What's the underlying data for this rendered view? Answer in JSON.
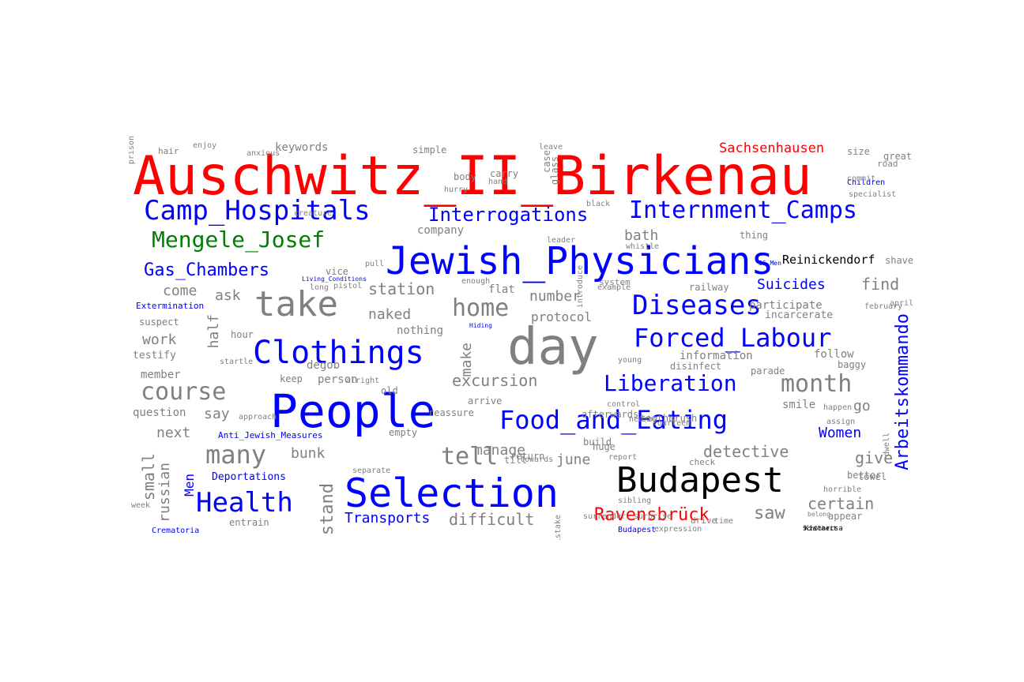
{
  "colors": {
    "place_red": "#ff0000",
    "topic_blue": "#0000ff",
    "person_green": "#008000",
    "place_black": "#000000",
    "word_gray": "#808080"
  },
  "words": [
    {
      "text": "Auschwitz_II_Birkenau",
      "color": "place_red"
    },
    {
      "text": "Jewish_Physicians",
      "color": "topic_blue"
    },
    {
      "text": "People",
      "color": "topic_blue"
    },
    {
      "text": "Selection",
      "color": "topic_blue"
    },
    {
      "text": "day",
      "color": "word_gray"
    },
    {
      "text": "Budapest",
      "color": "place_black"
    },
    {
      "text": "take",
      "color": "word_gray"
    },
    {
      "text": "Clothings",
      "color": "topic_blue"
    },
    {
      "text": "Camp_Hospitals",
      "color": "topic_blue"
    },
    {
      "text": "Internment_Camps",
      "color": "topic_blue"
    },
    {
      "text": "Interrogations",
      "color": "topic_blue"
    },
    {
      "text": "Mengele_Josef",
      "color": "person_green"
    },
    {
      "text": "Diseases",
      "color": "topic_blue"
    },
    {
      "text": "Forced_Labour",
      "color": "topic_blue"
    },
    {
      "text": "Food_and_Eating",
      "color": "topic_blue"
    },
    {
      "text": "Health",
      "color": "topic_blue"
    },
    {
      "text": "Liberation",
      "color": "topic_blue"
    },
    {
      "text": "month",
      "color": "word_gray"
    },
    {
      "text": "course",
      "color": "word_gray"
    },
    {
      "text": "many",
      "color": "word_gray"
    },
    {
      "text": "tell",
      "color": "word_gray"
    },
    {
      "text": "home",
      "color": "word_gray"
    },
    {
      "text": "Gas_Chambers",
      "color": "topic_blue"
    },
    {
      "text": "Ravensbrück",
      "color": "place_red"
    },
    {
      "text": "Arbeitskommando",
      "color": "topic_blue",
      "vertical": true
    },
    {
      "text": "Sachsenhausen",
      "color": "place_red"
    },
    {
      "text": "Reinickendorf",
      "color": "place_black"
    },
    {
      "text": "Suicides",
      "color": "topic_blue"
    },
    {
      "text": "find",
      "color": "word_gray"
    },
    {
      "text": "station",
      "color": "word_gray"
    },
    {
      "text": "number",
      "color": "word_gray"
    },
    {
      "text": "Transports",
      "color": "topic_blue"
    },
    {
      "text": "difficult",
      "color": "word_gray"
    },
    {
      "text": "saw",
      "color": "word_gray"
    },
    {
      "text": "certain",
      "color": "word_gray"
    },
    {
      "text": "Women",
      "color": "topic_blue"
    },
    {
      "text": "give",
      "color": "word_gray"
    },
    {
      "text": "go",
      "color": "word_gray"
    },
    {
      "text": "detective",
      "color": "word_gray"
    },
    {
      "text": "excursion",
      "color": "word_gray"
    },
    {
      "text": "manage",
      "color": "word_gray"
    },
    {
      "text": "bunk",
      "color": "word_gray"
    },
    {
      "text": "june",
      "color": "word_gray"
    },
    {
      "text": "naked",
      "color": "word_gray"
    },
    {
      "text": "make",
      "color": "word_gray",
      "vertical": true
    },
    {
      "text": "half",
      "color": "word_gray",
      "vertical": true
    },
    {
      "text": "work",
      "color": "word_gray"
    },
    {
      "text": "ask",
      "color": "word_gray"
    },
    {
      "text": "come",
      "color": "word_gray"
    },
    {
      "text": "next",
      "color": "word_gray"
    },
    {
      "text": "say",
      "color": "word_gray"
    },
    {
      "text": "stand",
      "color": "word_gray",
      "vertical": true
    },
    {
      "text": "small",
      "color": "word_gray",
      "vertical": true
    },
    {
      "text": "russian",
      "color": "word_gray",
      "vertical": true
    },
    {
      "text": "Men",
      "color": "topic_blue",
      "vertical": true
    },
    {
      "text": "Deportations",
      "color": "topic_blue"
    },
    {
      "text": "Anti_Jewish_Measures",
      "color": "topic_blue"
    },
    {
      "text": "Extermination",
      "color": "topic_blue"
    },
    {
      "text": "Children",
      "color": "topic_blue"
    },
    {
      "text": "protocol",
      "color": "word_gray"
    },
    {
      "text": "information",
      "color": "word_gray"
    },
    {
      "text": "participate",
      "color": "word_gray"
    },
    {
      "text": "incarcerate",
      "color": "word_gray"
    },
    {
      "text": "bath",
      "color": "word_gray"
    },
    {
      "text": "keywords",
      "color": "word_gray"
    },
    {
      "text": "simple",
      "color": "word_gray"
    },
    {
      "text": "company",
      "color": "word_gray"
    },
    {
      "text": "vice",
      "color": "word_gray"
    },
    {
      "text": "entrain",
      "color": "word_gray"
    },
    {
      "text": "question",
      "color": "word_gray"
    },
    {
      "text": "member",
      "color": "word_gray"
    },
    {
      "text": "testify",
      "color": "word_gray"
    },
    {
      "text": "suspect",
      "color": "word_gray"
    },
    {
      "text": "nothing",
      "color": "word_gray"
    },
    {
      "text": "person",
      "color": "word_gray"
    },
    {
      "text": "degob",
      "color": "word_gray"
    },
    {
      "text": "keep",
      "color": "word_gray"
    },
    {
      "text": "follow",
      "color": "word_gray"
    },
    {
      "text": "baggy",
      "color": "word_gray"
    },
    {
      "text": "disinfect",
      "color": "word_gray"
    },
    {
      "text": "smile",
      "color": "word_gray"
    },
    {
      "text": "toothbrush",
      "color": "word_gray"
    },
    {
      "text": "afterwards",
      "color": "word_gray"
    },
    {
      "text": "arrive",
      "color": "word_gray"
    },
    {
      "text": "reassure",
      "color": "word_gray"
    },
    {
      "text": "empty",
      "color": "word_gray"
    },
    {
      "text": "return",
      "color": "word_gray"
    },
    {
      "text": "build",
      "color": "word_gray"
    },
    {
      "text": "huge",
      "color": "word_gray"
    },
    {
      "text": "check",
      "color": "word_gray"
    },
    {
      "text": "towel",
      "color": "word_gray"
    },
    {
      "text": "better",
      "color": "word_gray"
    },
    {
      "text": "appear",
      "color": "word_gray"
    },
    {
      "text": "Kistarcsa",
      "color": "place_black"
    },
    {
      "text": "Schönheit",
      "color": "place_black"
    },
    {
      "text": "railway",
      "color": "word_gray"
    },
    {
      "text": "thing",
      "color": "word_gray"
    },
    {
      "text": "shave",
      "color": "word_gray"
    },
    {
      "text": "great",
      "color": "word_gray"
    },
    {
      "text": "size",
      "color": "word_gray"
    },
    {
      "text": "hair",
      "color": "word_gray"
    },
    {
      "text": "anxious",
      "color": "word_gray"
    },
    {
      "text": "body",
      "color": "word_gray"
    },
    {
      "text": "case",
      "color": "word_gray",
      "vertical": true
    },
    {
      "text": "glass",
      "color": "word_gray",
      "vertical": true
    },
    {
      "text": "hour",
      "color": "word_gray"
    },
    {
      "text": "long",
      "color": "word_gray"
    },
    {
      "text": "pull",
      "color": "word_gray"
    },
    {
      "text": "flat",
      "color": "word_gray"
    },
    {
      "text": "till",
      "color": "word_gray"
    },
    {
      "text": "old",
      "color": "word_gray"
    },
    {
      "text": "parade",
      "color": "word_gray"
    },
    {
      "text": "february",
      "color": "word_gray"
    },
    {
      "text": "april",
      "color": "word_gray"
    },
    {
      "text": "road",
      "color": "word_gray"
    },
    {
      "text": "commit",
      "color": "word_gray"
    },
    {
      "text": "specialist",
      "color": "word_gray"
    },
    {
      "text": "young",
      "color": "word_gray"
    },
    {
      "text": "nearby",
      "color": "word_gray"
    },
    {
      "text": "control",
      "color": "word_gray"
    },
    {
      "text": "happen",
      "color": "word_gray"
    },
    {
      "text": "assign",
      "color": "word_gray"
    },
    {
      "text": "horrible",
      "color": "word_gray"
    },
    {
      "text": "belong",
      "color": "word_gray"
    },
    {
      "text": "sibling",
      "color": "word_gray"
    },
    {
      "text": "surprise",
      "color": "word_gray"
    },
    {
      "text": "fourteen",
      "color": "word_gray"
    },
    {
      "text": "report",
      "color": "word_gray"
    },
    {
      "text": "towards",
      "color": "word_gray"
    },
    {
      "text": "separate",
      "color": "word_gray"
    },
    {
      "text": "startle",
      "color": "word_gray"
    },
    {
      "text": "alright",
      "color": "word_gray"
    },
    {
      "text": "approach",
      "color": "word_gray"
    },
    {
      "text": "leader",
      "color": "word_gray"
    },
    {
      "text": "whistle",
      "color": "word_gray"
    },
    {
      "text": "black",
      "color": "word_gray"
    },
    {
      "text": "system",
      "color": "word_gray"
    },
    {
      "text": "example",
      "color": "word_gray"
    },
    {
      "text": "enough",
      "color": "word_gray"
    },
    {
      "text": "carry",
      "color": "word_gray"
    },
    {
      "text": "hand",
      "color": "word_gray"
    },
    {
      "text": "hurry",
      "color": "word_gray"
    },
    {
      "text": "leave",
      "color": "word_gray"
    },
    {
      "text": "enjoy",
      "color": "word_gray"
    },
    {
      "text": "creature",
      "color": "word_gray"
    },
    {
      "text": "expression",
      "color": "word_gray"
    },
    {
      "text": "Crematoria",
      "color": "topic_blue"
    },
    {
      "text": "Living_Conditions",
      "color": "topic_blue"
    },
    {
      "text": "Hiding",
      "color": "topic_blue"
    },
    {
      "text": "SS_Men",
      "color": "topic_blue"
    },
    {
      "text": "Budapest",
      "color": "topic_blue"
    },
    {
      "text": "surrender",
      "color": "word_gray"
    },
    {
      "text": "drive",
      "color": "word_gray"
    },
    {
      "text": "time",
      "color": "word_gray"
    },
    {
      "text": "pistol",
      "color": "word_gray"
    },
    {
      "text": "week",
      "color": "word_gray"
    },
    {
      "text": "introduce",
      "color": "word_gray",
      "vertical": true
    },
    {
      "text": "mistake",
      "color": "word_gray",
      "vertical": true
    },
    {
      "text": "dwell",
      "color": "word_gray",
      "vertical": true
    },
    {
      "text": "prison",
      "color": "word_gray",
      "vertical": true
    }
  ]
}
